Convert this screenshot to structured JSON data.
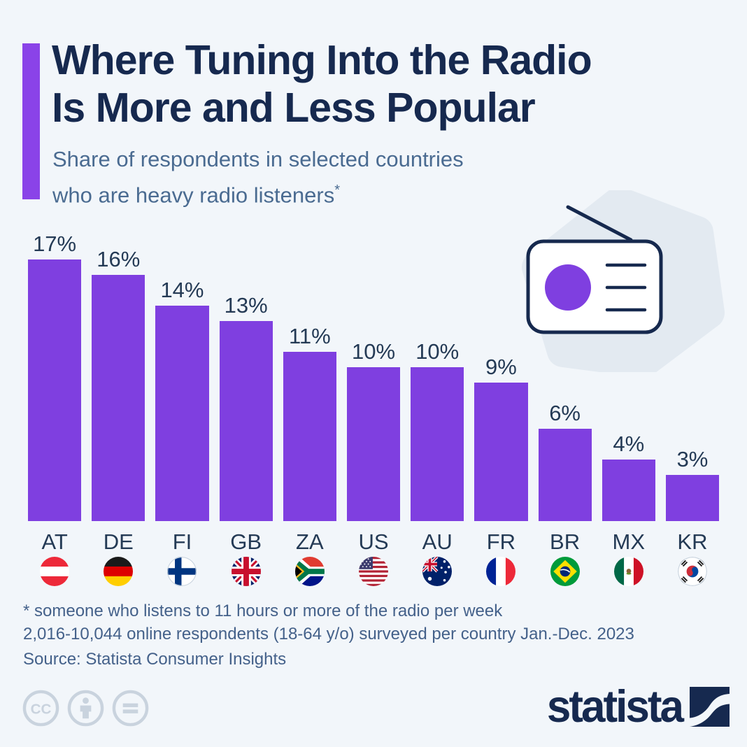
{
  "header": {
    "title_line1": "Where Tuning Into the Radio",
    "title_line2": "Is More and Less Popular",
    "subtitle_line1": "Share of respondents in selected countries",
    "subtitle_line2": "who are heavy radio listeners",
    "subtitle_footnote_marker": "*"
  },
  "chart_data": {
    "type": "bar",
    "title": "Share of respondents in selected countries who are heavy radio listeners",
    "categories": [
      "AT",
      "DE",
      "FI",
      "GB",
      "ZA",
      "US",
      "AU",
      "FR",
      "BR",
      "MX",
      "KR"
    ],
    "values": [
      17,
      16,
      14,
      13,
      11,
      10,
      10,
      9,
      6,
      4,
      3
    ],
    "value_labels": [
      "17%",
      "16%",
      "14%",
      "13%",
      "11%",
      "10%",
      "10%",
      "9%",
      "6%",
      "4%",
      "3%"
    ],
    "flag_names": [
      "austria",
      "germany",
      "finland",
      "united-kingdom",
      "south-africa",
      "united-states",
      "australia",
      "france",
      "brazil",
      "mexico",
      "south-korea"
    ],
    "unit": "%",
    "ylim": [
      0,
      17
    ],
    "axes_hidden": true,
    "grid": false,
    "legend": "none",
    "value_label_position": "above-bar",
    "bar_color": "#7F3FE0"
  },
  "footnotes": {
    "line1": "* someone who listens to 11 hours or more of the radio per week",
    "line2": "2,016-10,044 online respondents (18-64 y/o) surveyed per country Jan.-Dec. 2023",
    "source": "Source: Statista Consumer Insights"
  },
  "branding": {
    "logo_text": "statista",
    "license_icons": [
      "cc-icon",
      "cc-by-icon",
      "cc-nd-icon"
    ]
  },
  "colors": {
    "background": "#F2F6FA",
    "accent_purple": "#8A43E8",
    "bar_purple": "#7F3FE0",
    "title_navy": "#16294F",
    "subtitle_slate": "#4A6B91",
    "icon_gray": "#C9D3DE",
    "radio_outline_navy": "#16294E",
    "blob_gray": "#E3EAF1"
  }
}
